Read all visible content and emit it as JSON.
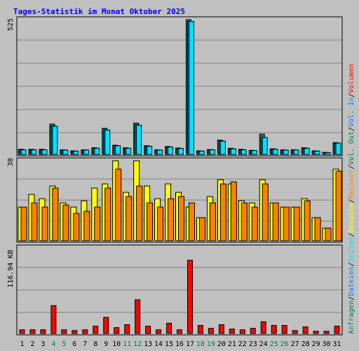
{
  "title": "Tages-Statistik im Monat Oktober 2025",
  "colors": {
    "background": "#c0c0c0",
    "title": "#0000ff",
    "panel_border": "#000000",
    "gridline": "#808080",
    "axis_text": "#000000",
    "weekend_text": "#008040",
    "requests": "#00805c",
    "files": "#0080ff",
    "pages": "#00e0ff",
    "visits": "#ffff00",
    "hosts": "#ff8000",
    "kbytes": "#ff0000"
  },
  "right_labels": {
    "top": [
      {
        "text": "Anfragen",
        "color": "#00805c"
      },
      {
        "text": "/",
        "color": "#000000"
      },
      {
        "text": "Dateien",
        "color": "#0080ff"
      },
      {
        "text": "/",
        "color": "#000000"
      },
      {
        "text": "Seiten",
        "color": "#00e0ff"
      },
      {
        "text": "/",
        "color": "#000000"
      },
      {
        "text": "Besuche",
        "color": "#ffff00"
      },
      {
        "text": "/",
        "color": "#000000"
      },
      {
        "text": "Rechner",
        "color": "#ff8000"
      },
      {
        "text": "/",
        "color": "#000000"
      },
      {
        "text": "Vol. Out",
        "color": "#008040"
      },
      {
        "text": "/",
        "color": "#000000"
      },
      {
        "text": "Vol. In",
        "color": "#0080ff"
      },
      {
        "text": "/",
        "color": "#000000"
      },
      {
        "text": "Volumen",
        "color": "#ff0000"
      }
    ]
  },
  "chart_data": [
    {
      "type": "bar",
      "panel": "top",
      "y_max_label": "525",
      "ylim": [
        0,
        525
      ],
      "categories": [
        "1",
        "2",
        "3",
        "4",
        "5",
        "6",
        "7",
        "8",
        "9",
        "10",
        "11",
        "12",
        "13",
        "14",
        "15",
        "16",
        "17",
        "18",
        "19",
        "20",
        "21",
        "22",
        "23",
        "24",
        "25",
        "26",
        "27",
        "28",
        "29",
        "30",
        "31"
      ],
      "weekend_days": [
        "4",
        "5",
        "11",
        "12",
        "18",
        "19",
        "25",
        "26"
      ],
      "series": [
        {
          "name": "Anfragen",
          "values": [
            20,
            20,
            20,
            118,
            18,
            14,
            18,
            26,
            102,
            36,
            26,
            122,
            34,
            18,
            31,
            25,
            525,
            14,
            19,
            56,
            24,
            20,
            16,
            79,
            22,
            18,
            18,
            26,
            14,
            8,
            46
          ]
        },
        {
          "name": "Dateien",
          "values": [
            18,
            18,
            18,
            110,
            17,
            13,
            17,
            24,
            95,
            34,
            24,
            114,
            32,
            17,
            29,
            23,
            518,
            13,
            18,
            52,
            22,
            18,
            15,
            66,
            20,
            17,
            17,
            24,
            13,
            7,
            44
          ]
        },
        {
          "name": "Seiten",
          "values": [
            18,
            18,
            18,
            110,
            17,
            13,
            17,
            24,
            95,
            34,
            24,
            114,
            32,
            17,
            29,
            23,
            518,
            13,
            18,
            52,
            22,
            18,
            15,
            66,
            20,
            17,
            17,
            24,
            13,
            7,
            44
          ]
        }
      ]
    },
    {
      "type": "bar",
      "panel": "middle",
      "y_max_label": "38",
      "ylim": [
        0,
        38
      ],
      "categories": [
        "1",
        "2",
        "3",
        "4",
        "5",
        "6",
        "7",
        "8",
        "9",
        "10",
        "11",
        "12",
        "13",
        "14",
        "15",
        "16",
        "17",
        "18",
        "19",
        "20",
        "21",
        "22",
        "23",
        "24",
        "25",
        "26",
        "27",
        "28",
        "29",
        "30",
        "31"
      ],
      "series": [
        {
          "name": "Besuche",
          "values": [
            16,
            22,
            20,
            26,
            18,
            16,
            19,
            25,
            27,
            38,
            23,
            38,
            26,
            20,
            27,
            23,
            16,
            11,
            21,
            29,
            27,
            19,
            18,
            29,
            18,
            16,
            16,
            20,
            11,
            6,
            34
          ]
        },
        {
          "name": "Rechner",
          "values": [
            16,
            18,
            16,
            25,
            17,
            13,
            14,
            16,
            25,
            34,
            21,
            26,
            18,
            16,
            20,
            21,
            18,
            11,
            18,
            27,
            28,
            18,
            16,
            27,
            18,
            16,
            16,
            19,
            11,
            6,
            33
          ]
        }
      ]
    },
    {
      "type": "bar",
      "panel": "bottom",
      "y_max_label": "116.94 KB",
      "ylim": [
        0,
        116.94
      ],
      "categories": [
        "1",
        "2",
        "3",
        "4",
        "5",
        "6",
        "7",
        "8",
        "9",
        "10",
        "11",
        "12",
        "13",
        "14",
        "15",
        "16",
        "17",
        "18",
        "19",
        "20",
        "21",
        "22",
        "23",
        "24",
        "25",
        "26",
        "27",
        "28",
        "29",
        "30",
        "31"
      ],
      "series": [
        {
          "name": "Volumen",
          "values": [
            5,
            5,
            5,
            38,
            5,
            4,
            5,
            10,
            22,
            8,
            12,
            46,
            10,
            5,
            14,
            5,
            100,
            11,
            7,
            12,
            6,
            5,
            7,
            16,
            11,
            11,
            4,
            9,
            3,
            3,
            10
          ]
        }
      ]
    }
  ]
}
